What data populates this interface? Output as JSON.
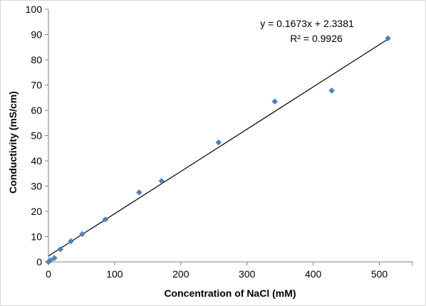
{
  "chart_data": {
    "type": "scatter",
    "title": "",
    "xlabel": "Concentration of NaCl (mM)",
    "ylabel": "Conductivity (mS/cm)",
    "xlim": [
      0,
      550
    ],
    "ylim": [
      0,
      100
    ],
    "x_ticks": [
      0,
      100,
      200,
      300,
      400,
      500
    ],
    "y_ticks": [
      0,
      10,
      20,
      30,
      40,
      50,
      60,
      70,
      80,
      90,
      100
    ],
    "grid": false,
    "legend": "none",
    "marker": "diamond",
    "marker_color": "#4f81bd",
    "trendline_color": "#000000",
    "series": [
      {
        "name": "",
        "points": [
          {
            "x": 0,
            "y": 0
          },
          {
            "x": 3,
            "y": 0.6
          },
          {
            "x": 9,
            "y": 1.5
          },
          {
            "x": 18,
            "y": 5.0
          },
          {
            "x": 34,
            "y": 8.2
          },
          {
            "x": 51,
            "y": 11.0
          },
          {
            "x": 86,
            "y": 16.8
          },
          {
            "x": 137,
            "y": 27.5
          },
          {
            "x": 171,
            "y": 32.0
          },
          {
            "x": 257,
            "y": 47.3
          },
          {
            "x": 342,
            "y": 63.5
          },
          {
            "x": 428,
            "y": 67.8
          },
          {
            "x": 513,
            "y": 88.5
          }
        ]
      }
    ],
    "trendline": {
      "slope": 0.1673,
      "intercept": 2.3381,
      "x_range": [
        0,
        513
      ],
      "equation": "y = 0.1673x + 2.3381",
      "r_squared": "R² = 0.9926"
    }
  }
}
